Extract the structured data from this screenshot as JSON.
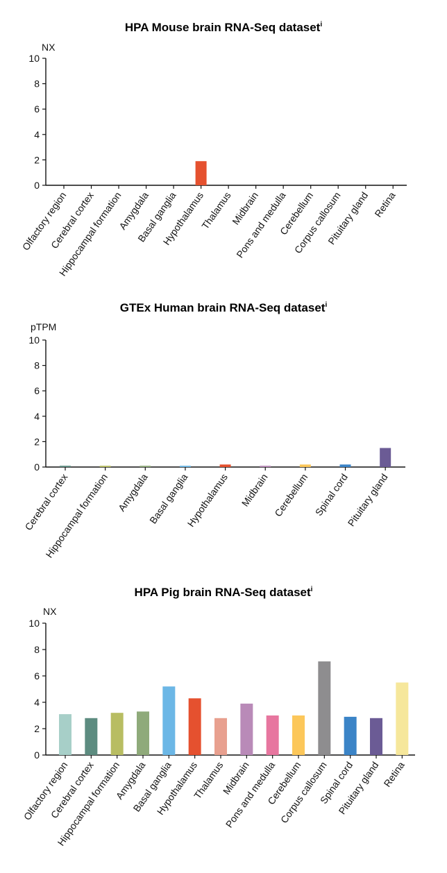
{
  "chart_data": [
    {
      "type": "bar",
      "title": "HPA Mouse brain RNA-Seq dataset",
      "title_marker": "i",
      "ylabel": "NX",
      "ylim": [
        0,
        10
      ],
      "yticks": [
        "0",
        "2",
        "4",
        "6",
        "8",
        "10"
      ],
      "categories": [
        "Olfactory region",
        "Cerebral cortex",
        "Hippocampal formation",
        "Amygdala",
        "Basal ganglia",
        "Hypothalamus",
        "Thalamus",
        "Midbrain",
        "Pons and medulla",
        "Cerebellum",
        "Corpus callosum",
        "Pituitary gland",
        "Retina"
      ],
      "values": [
        0,
        0,
        0,
        0,
        0,
        1.9,
        0,
        0,
        0,
        0,
        0,
        0,
        0
      ],
      "colors": [
        "#e5512f",
        "#e5512f",
        "#e5512f",
        "#e5512f",
        "#e5512f",
        "#e5512f",
        "#e5512f",
        "#e5512f",
        "#e5512f",
        "#e5512f",
        "#e5512f",
        "#e5512f",
        "#e5512f"
      ],
      "grid": false,
      "legend": "none"
    },
    {
      "type": "bar",
      "title": "GTEx Human brain RNA-Seq dataset",
      "title_marker": "i",
      "ylabel": "pTPM",
      "ylim": [
        0,
        10
      ],
      "yticks": [
        "0",
        "2",
        "4",
        "6",
        "8",
        "10"
      ],
      "categories": [
        "Cerebral cortex",
        "Hippocampal formation",
        "Amygdala",
        "Basal ganglia",
        "Hypothalamus",
        "Midbrain",
        "Cerebellum",
        "Spinal cord",
        "Pituitary gland"
      ],
      "values": [
        0.1,
        0.1,
        0.1,
        0.1,
        0.2,
        0.1,
        0.2,
        0.2,
        1.5
      ],
      "colors": [
        "#5d8c80",
        "#b8bd62",
        "#8faa7a",
        "#6cb7e6",
        "#e5512f",
        "#b98ab8",
        "#fcc75a",
        "#3b84c7",
        "#6b5b95"
      ],
      "grid": false,
      "legend": "none"
    },
    {
      "type": "bar",
      "title": "HPA Pig brain RNA-Seq dataset",
      "title_marker": "i",
      "ylabel": "NX",
      "ylim": [
        0,
        10
      ],
      "yticks": [
        "0",
        "2",
        "4",
        "6",
        "8",
        "10"
      ],
      "categories": [
        "Olfactory region",
        "Cerebral cortex",
        "Hippocampal formation",
        "Amygdala",
        "Basal ganglia",
        "Hypothalamus",
        "Thalamus",
        "Midbrain",
        "Pons and medulla",
        "Cerebellum",
        "Corpus callosum",
        "Spinal cord",
        "Pituitary gland",
        "Retina"
      ],
      "values": [
        3.1,
        2.8,
        3.2,
        3.3,
        5.2,
        4.3,
        2.8,
        3.9,
        3.0,
        3.0,
        7.1,
        2.9,
        2.8,
        5.5
      ],
      "colors": [
        "#a7cfc8",
        "#5d8c80",
        "#b8bd62",
        "#8faa7a",
        "#6cb7e6",
        "#e5512f",
        "#e8a08f",
        "#b98ab8",
        "#e7769f",
        "#fcc75a",
        "#8e8d8f",
        "#3b84c7",
        "#6b5b95",
        "#f6e79b"
      ],
      "grid": false,
      "legend": "none"
    }
  ]
}
